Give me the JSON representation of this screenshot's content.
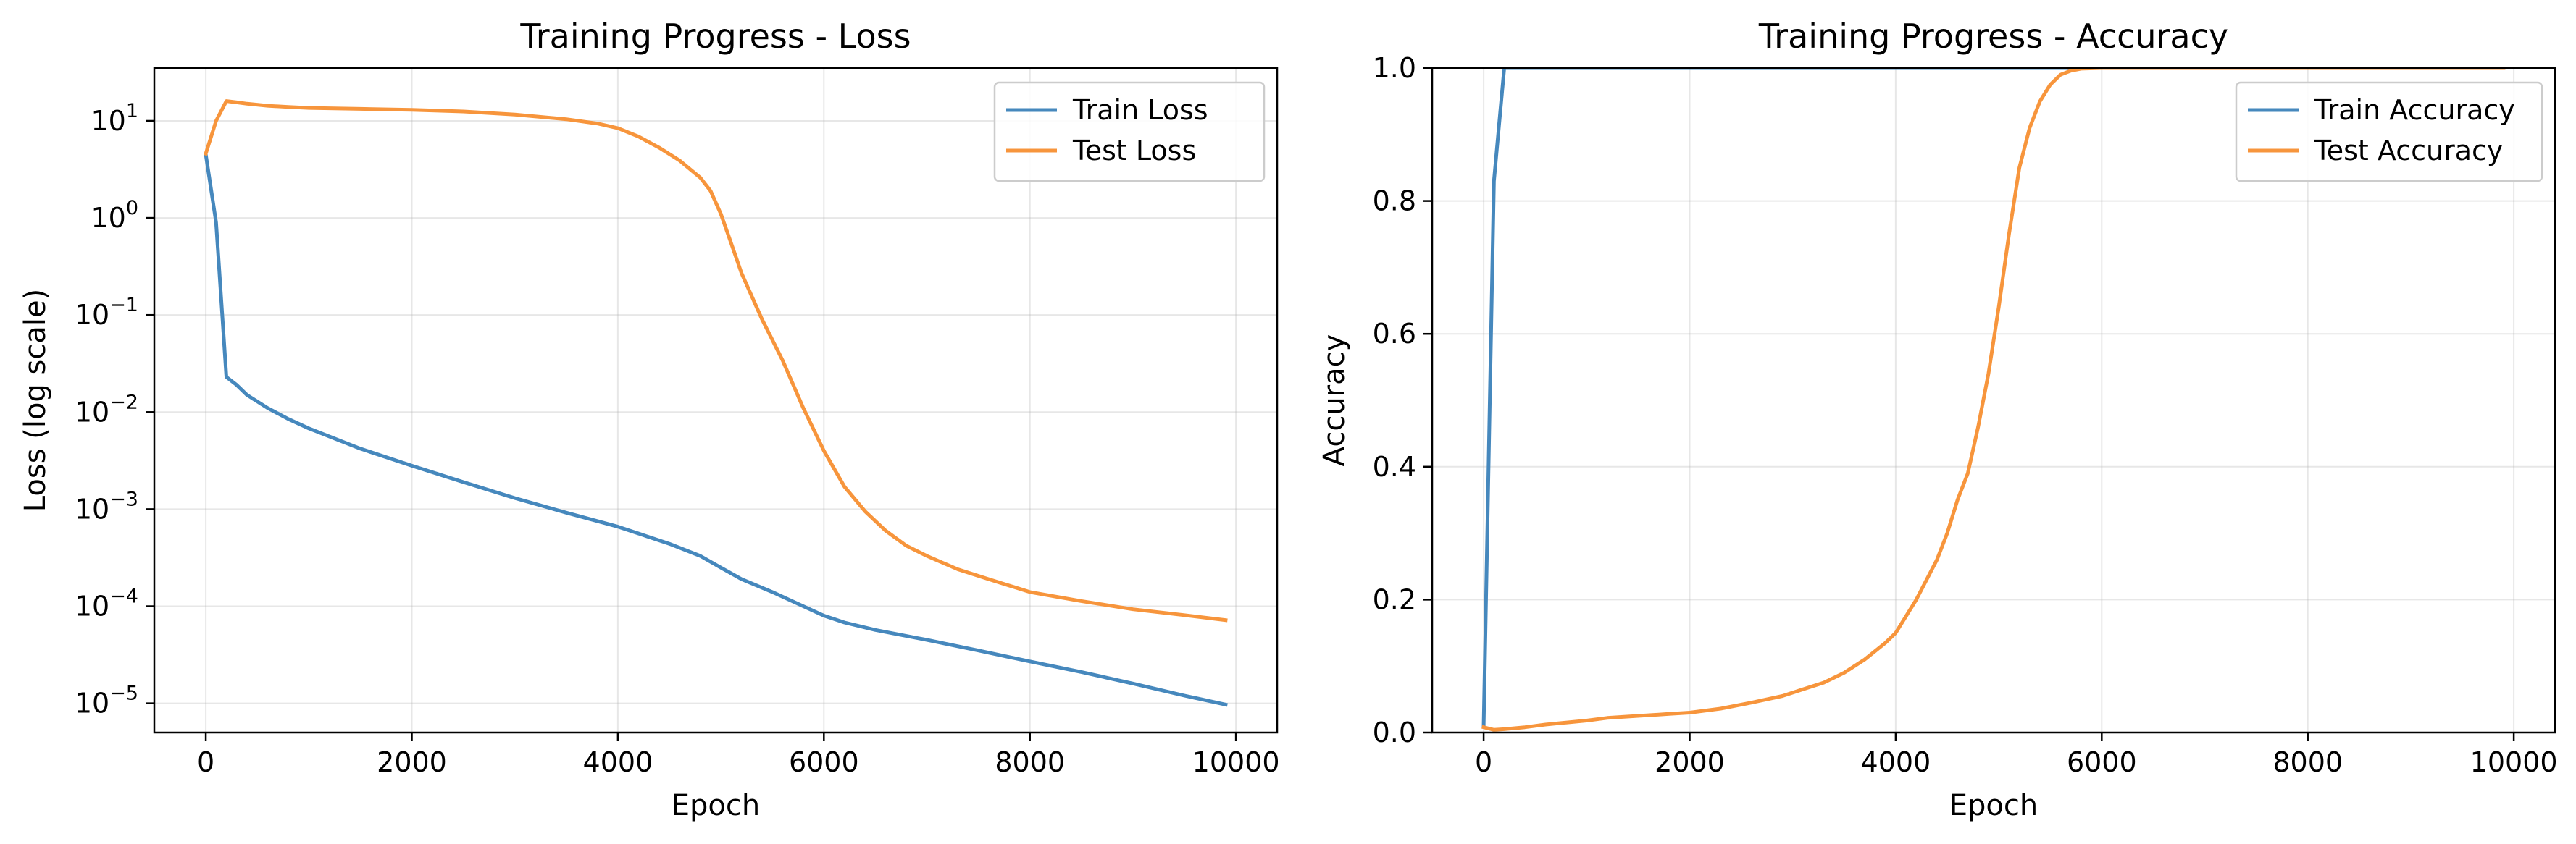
{
  "colors": {
    "train": "#4688bd",
    "test": "#f7953c"
  },
  "chart_data": [
    {
      "type": "line",
      "title": "Training Progress - Loss",
      "xlabel": "Epoch",
      "ylabel": "Loss (log scale)",
      "yscale": "log",
      "xlim": [
        -500,
        10400
      ],
      "ylim": [
        5e-06,
        35
      ],
      "xticks": [
        0,
        2000,
        4000,
        6000,
        8000,
        10000
      ],
      "xtick_labels": [
        "0",
        "2000",
        "4000",
        "6000",
        "8000",
        "10000"
      ],
      "yticks": [
        1e-05,
        0.0001,
        0.001,
        0.01,
        0.1,
        1,
        10
      ],
      "ytick_labels": [
        {
          "base": "10",
          "exp": "−5"
        },
        {
          "base": "10",
          "exp": "−4"
        },
        {
          "base": "10",
          "exp": "−3"
        },
        {
          "base": "10",
          "exp": "−2"
        },
        {
          "base": "10",
          "exp": "−1"
        },
        {
          "base": "10",
          "exp": "0"
        },
        {
          "base": "10",
          "exp": "1"
        }
      ],
      "grid": true,
      "legend": "upper right",
      "series": [
        {
          "name": "Train Loss",
          "color": "#4688bd",
          "x": [
            0,
            100,
            200,
            300,
            400,
            600,
            800,
            1000,
            1500,
            2000,
            2500,
            3000,
            3500,
            4000,
            4500,
            4800,
            5000,
            5200,
            5500,
            5800,
            6000,
            6200,
            6500,
            7000,
            7500,
            8000,
            8500,
            9000,
            9500,
            9900
          ],
          "y": [
            4.5,
            0.9,
            0.023,
            0.019,
            0.015,
            0.011,
            0.0085,
            0.0068,
            0.0042,
            0.0028,
            0.0019,
            0.0013,
            0.00092,
            0.00066,
            0.00044,
            0.00033,
            0.00025,
            0.00019,
            0.00014,
            0.0001,
            8e-05,
            6.8e-05,
            5.7e-05,
            4.5e-05,
            3.5e-05,
            2.7e-05,
            2.1e-05,
            1.6e-05,
            1.2e-05,
            9.7e-06
          ]
        },
        {
          "name": "Test Loss",
          "color": "#f7953c",
          "x": [
            0,
            100,
            200,
            300,
            400,
            600,
            800,
            1000,
            1500,
            2000,
            2500,
            3000,
            3500,
            3800,
            4000,
            4200,
            4400,
            4600,
            4800,
            4900,
            5000,
            5100,
            5200,
            5400,
            5600,
            5800,
            6000,
            6200,
            6400,
            6600,
            6800,
            7000,
            7300,
            7600,
            8000,
            8500,
            9000,
            9500,
            9900
          ],
          "y": [
            4.6,
            10,
            16,
            15.5,
            15,
            14.3,
            13.9,
            13.6,
            13.3,
            13,
            12.5,
            11.6,
            10.4,
            9.4,
            8.4,
            6.9,
            5.3,
            3.9,
            2.6,
            1.9,
            1.1,
            0.55,
            0.27,
            0.09,
            0.034,
            0.011,
            0.004,
            0.0017,
            0.00095,
            0.0006,
            0.00042,
            0.00033,
            0.00024,
            0.00019,
            0.00014,
            0.000113,
            9.3e-05,
            8.1e-05,
            7.2e-05
          ]
        }
      ]
    },
    {
      "type": "line",
      "title": "Training Progress - Accuracy",
      "xlabel": "Epoch",
      "ylabel": "Accuracy",
      "yscale": "linear",
      "xlim": [
        -500,
        10400
      ],
      "ylim": [
        0,
        1
      ],
      "xticks": [
        0,
        2000,
        4000,
        6000,
        8000,
        10000
      ],
      "xtick_labels": [
        "0",
        "2000",
        "4000",
        "6000",
        "8000",
        "10000"
      ],
      "yticks": [
        0,
        0.2,
        0.4,
        0.6,
        0.8,
        1
      ],
      "ytick_labels": [
        "0.0",
        "0.2",
        "0.4",
        "0.6",
        "0.8",
        "1.0"
      ],
      "grid": true,
      "legend": "upper right",
      "series": [
        {
          "name": "Train Accuracy",
          "color": "#4688bd",
          "x": [
            0,
            100,
            200,
            300,
            400,
            600,
            800,
            1000,
            2000,
            3000,
            4000,
            5000,
            6000,
            7000,
            8000,
            9000,
            9900
          ],
          "y": [
            0.01,
            0.83,
            1,
            1,
            1,
            1,
            1,
            1,
            1,
            1,
            1,
            1,
            1,
            1,
            1,
            1,
            1
          ]
        },
        {
          "name": "Test Accuracy",
          "color": "#f7953c",
          "x": [
            0,
            100,
            200,
            400,
            600,
            800,
            1000,
            1200,
            1500,
            1800,
            2000,
            2300,
            2600,
            2900,
            3100,
            3300,
            3500,
            3700,
            3900,
            4000,
            4200,
            4400,
            4500,
            4600,
            4700,
            4800,
            4900,
            5000,
            5100,
            5200,
            5300,
            5400,
            5500,
            5600,
            5700,
            5800,
            6000,
            6200,
            6500,
            7000,
            8000,
            9000,
            9900
          ],
          "y": [
            0.008,
            0.004,
            0.005,
            0.008,
            0.012,
            0.015,
            0.018,
            0.022,
            0.025,
            0.028,
            0.03,
            0.036,
            0.045,
            0.055,
            0.065,
            0.075,
            0.09,
            0.11,
            0.135,
            0.15,
            0.2,
            0.26,
            0.3,
            0.35,
            0.39,
            0.46,
            0.54,
            0.64,
            0.75,
            0.85,
            0.91,
            0.95,
            0.975,
            0.99,
            0.996,
            0.999,
            1,
            1,
            1,
            1,
            1,
            1,
            1
          ]
        }
      ]
    }
  ]
}
